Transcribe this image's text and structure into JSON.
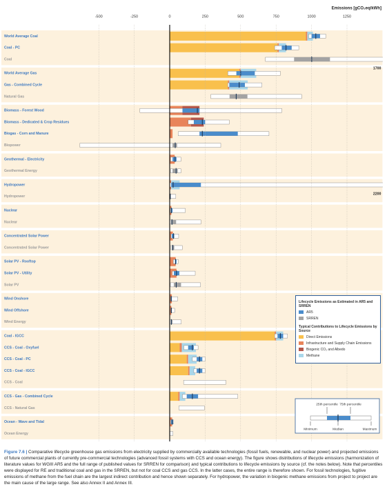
{
  "chart_data": {
    "type": "range-bar",
    "x_label": "Emissions [gCO₂eq/kWh]",
    "xlim": [
      -660,
      1500
    ],
    "xticks": [
      -500,
      -250,
      0,
      250,
      500,
      750,
      1000,
      1250
    ],
    "grid": true,
    "median_color": "#1b3553",
    "groups": [
      {
        "rows": [
          {
            "label": "World Average Coal",
            "source": "AR5",
            "contributions": [
              960,
              10,
              0,
              40
            ],
            "min": 980,
            "p25": 1000,
            "median": 1030,
            "p75": 1060,
            "max": 1100
          },
          {
            "label": "Coal - PC",
            "source": "AR5",
            "contributions": [
              760,
              10,
              0,
              50
            ],
            "min": 740,
            "p25": 790,
            "median": 820,
            "p75": 860,
            "max": 910
          },
          {
            "label": "Coal",
            "source": "SRREN",
            "min": 675,
            "p25": 877,
            "median": 1001,
            "p75": 1130,
            "max": 1700
          }
        ]
      },
      {
        "rows": [
          {
            "label": "World Average Gas",
            "source": "AR5",
            "contributions": [
              490,
              10,
              0,
              110
            ],
            "min": 410,
            "p25": 470,
            "median": 500,
            "p75": 600,
            "max": 780
          },
          {
            "label": "Gas - Combined Cycle",
            "source": "AR5",
            "contributions": [
              410,
              10,
              0,
              130
            ],
            "min": 410,
            "p25": 420,
            "median": 490,
            "p75": 530,
            "max": 650
          },
          {
            "label": "Natural Gas",
            "source": "SRREN",
            "min": 290,
            "p25": 422,
            "median": 469,
            "p75": 548,
            "max": 930
          }
        ]
      },
      {
        "rows": [
          {
            "label": "Biomass - Forest Wood",
            "source": "AR5",
            "contributions": [
              0,
              90,
              120,
              0
            ],
            "min": -210,
            "p25": 90,
            "median": 195,
            "p75": 210,
            "max": 790
          },
          {
            "label": "Biomass - Dedicated & Crop Residues",
            "source": "AR5",
            "contributions": [
              0,
              150,
              90,
              0
            ],
            "min": 130,
            "p25": 170,
            "median": 230,
            "p75": 250,
            "max": 420
          },
          {
            "label": "Biogas - Corn and Manure",
            "source": "AR5",
            "contributions": [
              0,
              20,
              0,
              0
            ],
            "min": 60,
            "p25": 210,
            "median": 230,
            "p75": 480,
            "max": 700
          },
          {
            "label": "Biopower",
            "source": "SRREN",
            "min": -633,
            "p25": 20,
            "median": 39,
            "p75": 52,
            "max": 360
          }
        ]
      },
      {
        "rows": [
          {
            "label": "Geothermal - Electricity",
            "source": "AR5",
            "contributions": [
              0,
              35,
              0,
              0
            ],
            "min": 6,
            "p25": 20,
            "median": 38,
            "p75": 48,
            "max": 79
          },
          {
            "label": "Geothermal Energy",
            "source": "SRREN",
            "min": 6,
            "p25": 20,
            "median": 45,
            "p75": 57,
            "max": 79
          }
        ]
      },
      {
        "rows": [
          {
            "label": "Hydropower",
            "source": "AR5",
            "contributions": [
              0,
              10,
              0,
              60
            ],
            "min": 1,
            "p25": 10,
            "median": 24,
            "p75": 220,
            "max": 2200
          },
          {
            "label": "Hydropower",
            "source": "SRREN",
            "min": 0,
            "p25": 3,
            "median": 4,
            "p75": 7,
            "max": 43
          }
        ]
      },
      {
        "rows": [
          {
            "label": "Nuclear",
            "source": "AR5",
            "contributions": [
              0,
              12,
              0,
              0
            ],
            "min": 3.7,
            "p25": 8,
            "median": 12,
            "p75": 20,
            "max": 110
          },
          {
            "label": "Nuclear",
            "source": "SRREN",
            "min": 1,
            "p25": 8,
            "median": 16,
            "p75": 45,
            "max": 220
          }
        ]
      },
      {
        "rows": [
          {
            "label": "Concentrated Solar Power",
            "source": "AR5",
            "contributions": [
              0,
              22,
              0,
              0
            ],
            "min": 8.8,
            "p25": 14,
            "median": 27,
            "p75": 32,
            "max": 63
          },
          {
            "label": "Concentrated Solar Power",
            "source": "SRREN",
            "min": 7,
            "p25": 14,
            "median": 22,
            "p75": 32,
            "max": 89
          }
        ]
      },
      {
        "rows": [
          {
            "label": "Solar PV - Rooftop",
            "source": "AR5",
            "contributions": [
              0,
              42,
              0,
              0
            ],
            "min": 26,
            "p25": 38,
            "median": 41,
            "p75": 48,
            "max": 60
          },
          {
            "label": "Solar PV - Utility",
            "source": "AR5",
            "contributions": [
              0,
              48,
              0,
              0
            ],
            "min": 18,
            "p25": 29,
            "median": 48,
            "p75": 68,
            "max": 180
          },
          {
            "label": "Solar PV",
            "source": "SRREN",
            "min": 5,
            "p25": 29,
            "median": 46,
            "p75": 80,
            "max": 217
          }
        ]
      },
      {
        "rows": [
          {
            "label": "Wind Onshore",
            "source": "AR5",
            "contributions": [
              0,
              15,
              0,
              0
            ],
            "min": 7,
            "p25": 9,
            "median": 11,
            "p75": 15,
            "max": 56
          },
          {
            "label": "Wind Offshore",
            "source": "AR5",
            "contributions": [
              0,
              12,
              0,
              0
            ],
            "min": 8,
            "p25": 9,
            "median": 12,
            "p75": 14,
            "max": 35
          },
          {
            "label": "Wind Energy",
            "source": "SRREN",
            "min": 2,
            "p25": 8,
            "median": 12,
            "p75": 20,
            "max": 81
          }
        ]
      },
      {
        "rows": [
          {
            "label": "Coal - IGCC",
            "source": "AR5",
            "contributions": [
              740,
              10,
              0,
              50
            ],
            "min": 740,
            "p25": 760,
            "median": 780,
            "p75": 800,
            "max": 830
          },
          {
            "label": "CCS - Coal - Oxyfuel",
            "source": "AR5",
            "contributions": [
              70,
              15,
              0,
              100
            ],
            "min": 100,
            "p25": 130,
            "median": 160,
            "p75": 170,
            "max": 200
          },
          {
            "label": "CCS - Coal - PC",
            "source": "AR5",
            "contributions": [
              120,
              10,
              0,
              60
            ],
            "min": 160,
            "p25": 190,
            "median": 210,
            "p75": 230,
            "max": 250
          },
          {
            "label": "CCS - Coal - IGCC",
            "source": "AR5",
            "contributions": [
              130,
              10,
              0,
              40
            ],
            "min": 170,
            "p25": 190,
            "median": 210,
            "p75": 230,
            "max": 250
          },
          {
            "label": "CCS - Coal",
            "source": "SRREN",
            "min": 98,
            "p25": null,
            "median": null,
            "p75": null,
            "max": 396
          }
        ]
      },
      {
        "rows": [
          {
            "label": "CCS - Gas - Combined Cycle",
            "source": "AR5",
            "contributions": [
              60,
              10,
              0,
              40
            ],
            "min": 90,
            "p25": 120,
            "median": 160,
            "p75": 200,
            "max": 480
          },
          {
            "label": "CCS - Natural Gas",
            "source": "SRREN",
            "min": 65,
            "p25": null,
            "median": null,
            "p75": null,
            "max": 245
          }
        ]
      },
      {
        "rows": [
          {
            "label": "Ocean - Wave and Tidal",
            "source": "AR5",
            "contributions": [
              0,
              17,
              0,
              0
            ],
            "min": 5.6,
            "p25": 10,
            "median": 17,
            "p75": 24,
            "max": 28
          },
          {
            "label": "Ocean Energy",
            "source": "SRREN",
            "min": 2,
            "p25": null,
            "median": null,
            "p75": null,
            "max": 23
          }
        ]
      }
    ],
    "legend": {
      "title_1": "Lifecycle Emissions as Estimated in AR5 and SRREN",
      "series": [
        {
          "name": "AR5",
          "color": "#4a8ccb",
          "label_color": "#3c78c0"
        },
        {
          "name": "SRREN",
          "color": "#a3a3a3",
          "label_color": "#9a9a9a"
        }
      ],
      "title_2": "Typical Contributions to Lifecycle Emissions by Source",
      "contributions": [
        {
          "name": "Direct Emissions",
          "color": "#f9c04d"
        },
        {
          "name": "Infrastructure and Supply Chain Emissions",
          "color": "#e8845a"
        },
        {
          "name": "Biogenic CO₂ and Albedo",
          "color": "#b5574b"
        },
        {
          "name": "Methane",
          "color": "#a9d7ea"
        }
      ]
    },
    "key": {
      "p25": "25th percentile",
      "p75": "75th percentile",
      "min": "Minimum",
      "median": "Median",
      "max": "Maximum"
    },
    "caption_label": "Figure 7.6 |",
    "caption": "Comparative lifecycle greenhouse gas emissions from electricity supplied by commercially available technologies (fossil fuels, renewable, and nuclear power) and projected emissions of future commercial plants of currently pre-commercial technologies (advanced fossil systems with CCS and ocean energy). The figure shows distributions of lifecycle emissions (harmonization of literature values for WGIII AR5 and the full range of published values for SRREN for comparison) and typical contributions to lifecycle emissions by source (cf. the notes below). Note that percentiles were displayed for RE and traditional coal and gas in the SRREN, but not for coal CCS and gas CCS. In the latter cases, the entire range is therefore shown. For fossil technologies, fugitive emissions of methane from the fuel chain are the largest indirect contribution and hence shown separately. For hydropower, the variation in biogenic methane emissions from project to project are the main cause of the large range. See also Annex II and Annex III."
  }
}
